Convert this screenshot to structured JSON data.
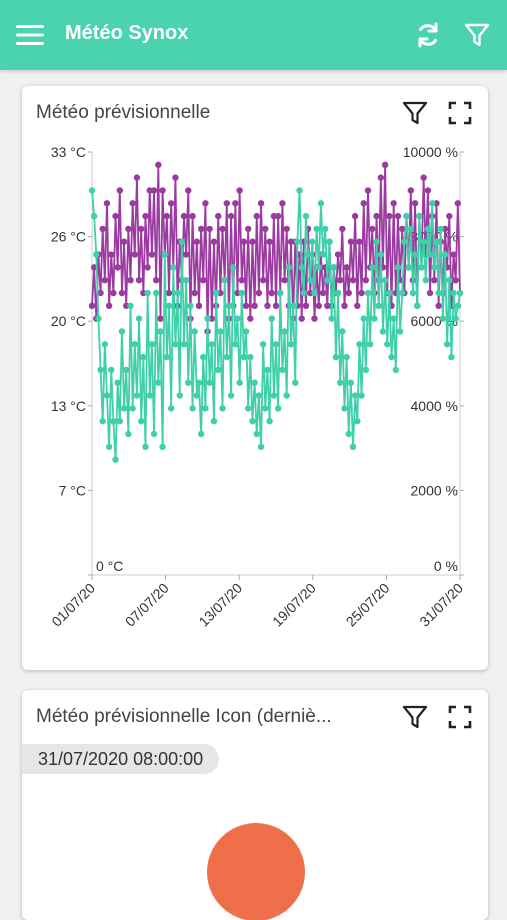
{
  "appbar": {
    "title": "Météo Synox"
  },
  "card1": {
    "title": "Météo prévisionnelle"
  },
  "card2": {
    "title": "Météo prévisionnelle Icon (derniè...",
    "date": "31/07/2020 08:00:00"
  },
  "colors": {
    "accent": "#4ad3ae",
    "series_purple": "#9b3aa0",
    "series_teal": "#3fcfa9",
    "gauge": "#ef6f4b"
  },
  "chart_data": {
    "type": "line",
    "title": "",
    "x_tick_labels": [
      "01/07/20",
      "07/07/20",
      "13/07/20",
      "19/07/20",
      "25/07/20",
      "31/07/20"
    ],
    "y_left_ticks": [
      "0 °C",
      "7 °C",
      "13 °C",
      "20 °C",
      "26 °C",
      "33 °C"
    ],
    "y_right_ticks": [
      "0 %",
      "2000 %",
      "4000 %",
      "6000 %",
      "8000 %",
      "10000 %"
    ],
    "ylim_left": [
      0,
      33
    ],
    "ylim_right": [
      0,
      10000
    ],
    "series": [
      {
        "color": "#9b3aa0",
        "axis": "left",
        "values": [
          21,
          24,
          20,
          25,
          22,
          27,
          23,
          29,
          21,
          25,
          22,
          28,
          24,
          30,
          22,
          26,
          21,
          27,
          23,
          29,
          25,
          31,
          23,
          27,
          22,
          28,
          24,
          30,
          25,
          30,
          23,
          32,
          20,
          30,
          25,
          28,
          22,
          29,
          24,
          31,
          21,
          26,
          23,
          28,
          25,
          30,
          20,
          28,
          22,
          26,
          21,
          27,
          23,
          29,
          19,
          27,
          20,
          26,
          21,
          28,
          22,
          27,
          23,
          29,
          20,
          28,
          21,
          29,
          22,
          30,
          23,
          26,
          21,
          27,
          20,
          26,
          21,
          28,
          22,
          29,
          23,
          27,
          21,
          26,
          22,
          28,
          21,
          28,
          22,
          29,
          23,
          27,
          21,
          26,
          20,
          26,
          21,
          25,
          20,
          26,
          21,
          27,
          22,
          25,
          20,
          24,
          21,
          25,
          22,
          24,
          21,
          26,
          21,
          24,
          22,
          25,
          23,
          27,
          21,
          24,
          22,
          26,
          23,
          28,
          21,
          26,
          22,
          29,
          23,
          30,
          24,
          27,
          22,
          28,
          23,
          31,
          24,
          32,
          22,
          28,
          21,
          29,
          22,
          28,
          23,
          27,
          22,
          28,
          24,
          30,
          23,
          29,
          21,
          28,
          24,
          31,
          25,
          30,
          22,
          28,
          23,
          29,
          21,
          26,
          22,
          27,
          24,
          28,
          21,
          25,
          23,
          29,
          22
        ]
      },
      {
        "color": "#3fcfa9",
        "axis": "left",
        "values": [
          30,
          28,
          25,
          20,
          16,
          12,
          18,
          14,
          10,
          16,
          12,
          9,
          15,
          12,
          19,
          13,
          16,
          11,
          21,
          13,
          18,
          14,
          20,
          12,
          17,
          10,
          22,
          14,
          18,
          11,
          22,
          15,
          19,
          10,
          25,
          17,
          21,
          13,
          24,
          18,
          22,
          14,
          26,
          18,
          23,
          15,
          21,
          13,
          19,
          14,
          15,
          11,
          17,
          13,
          20,
          15,
          18,
          12,
          22,
          16,
          19,
          13,
          23,
          17,
          21,
          14,
          24,
          18,
          20,
          15,
          22,
          17,
          19,
          13,
          17,
          12,
          15,
          11,
          14,
          10,
          18,
          13,
          16,
          12,
          20,
          14,
          18,
          13,
          22,
          16,
          19,
          14,
          24,
          18,
          21,
          15,
          26,
          30,
          24,
          22,
          28,
          25,
          23,
          26,
          22,
          27,
          24,
          29,
          25,
          27,
          23,
          26,
          20,
          24,
          17,
          22,
          15,
          19,
          13,
          17,
          11,
          15,
          10,
          14,
          12,
          18,
          14,
          20,
          16,
          22,
          18,
          24,
          20,
          26,
          21,
          25,
          19,
          23,
          18,
          22,
          17,
          20,
          16,
          24,
          19,
          22,
          26,
          28,
          24,
          27,
          22,
          25,
          21,
          28,
          24,
          26,
          23,
          27,
          25,
          29,
          24,
          26,
          22,
          27,
          20,
          25,
          18,
          23,
          17,
          22,
          20,
          21,
          22
        ]
      }
    ]
  }
}
